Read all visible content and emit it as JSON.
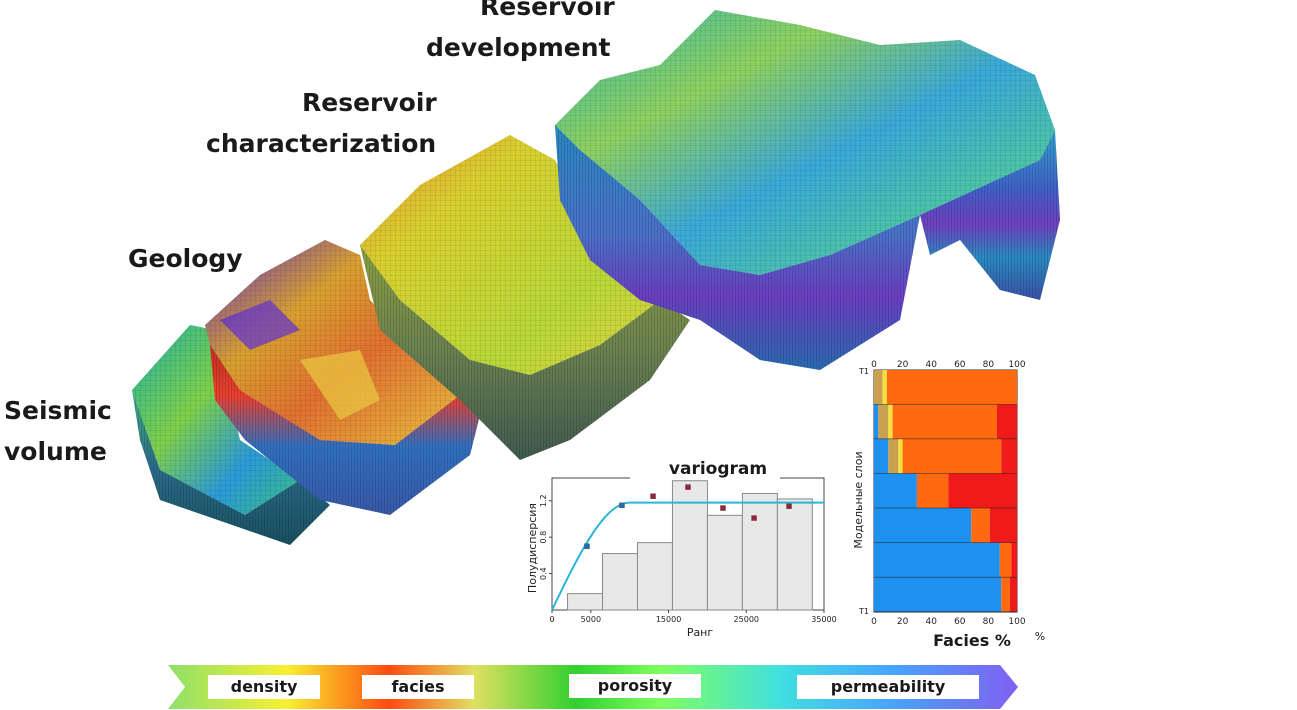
{
  "labels": {
    "seismic_line1": "Seismic",
    "seismic_line2": "volume",
    "geology": "Geology",
    "characterization_line1": "Reservoir",
    "characterization_line2": "characterization",
    "development_line1": "Reservoir",
    "development_line2": "development"
  },
  "gradient_bar": {
    "items": [
      "density",
      "facies",
      "porosity",
      "permeability"
    ]
  },
  "chart_data": [
    {
      "type": "bar",
      "title": "variogram",
      "xlabel": "Ранг",
      "ylabel": "Полудисперсия",
      "xlim": [
        0,
        35000
      ],
      "ylim": [
        0,
        1.45
      ],
      "xticks": [
        "0",
        "5000",
        "15000",
        "25000",
        "35000"
      ],
      "yticks": [
        "0.4",
        "0.8",
        "1.2"
      ],
      "histogram": {
        "bin_edges": [
          2000,
          6500,
          11000,
          15500,
          20000,
          24500,
          29000,
          33500
        ],
        "values": [
          0.18,
          0.62,
          0.74,
          1.42,
          1.04,
          1.28,
          1.22
        ]
      },
      "points": [
        {
          "x": 4500,
          "y": 0.7
        },
        {
          "x": 9000,
          "y": 1.15
        },
        {
          "x": 13000,
          "y": 1.25
        },
        {
          "x": 17500,
          "y": 1.35
        },
        {
          "x": 22000,
          "y": 1.12
        },
        {
          "x": 26000,
          "y": 1.01
        },
        {
          "x": 30500,
          "y": 1.14
        }
      ],
      "model": {
        "sill": 1.18,
        "range": 10000,
        "line_color": "#29b6d6"
      },
      "colors": {
        "bar_fill": "#e8e8e8",
        "bar_stroke": "#8a8a8a",
        "point_blue": "#1f6fb8",
        "point_red": "#9b2235"
      }
    },
    {
      "type": "bar",
      "orientation": "horizontal-stacked",
      "xlabel": "Facies %",
      "x_unit": "%",
      "ylabel": "Модельные слои",
      "top_label": "T1",
      "bottom_label": "T1",
      "xticks": [
        "0",
        "20",
        "40",
        "60",
        "80",
        "100"
      ],
      "colors": {
        "blue": "#1e90f0",
        "brown": "#c8a050",
        "yellow": "#f5e040",
        "orange": "#ff6a10",
        "red": "#f01a1a"
      },
      "layers": [
        [
          {
            "c": "brown",
            "v": 6
          },
          {
            "c": "yellow",
            "v": 3
          },
          {
            "c": "orange",
            "v": 91
          }
        ],
        [
          {
            "c": "blue",
            "v": 3
          },
          {
            "c": "brown",
            "v": 7
          },
          {
            "c": "yellow",
            "v": 3
          },
          {
            "c": "orange",
            "v": 73
          },
          {
            "c": "red",
            "v": 14
          }
        ],
        [
          {
            "c": "blue",
            "v": 10
          },
          {
            "c": "brown",
            "v": 7
          },
          {
            "c": "yellow",
            "v": 3
          },
          {
            "c": "orange",
            "v": 69
          },
          {
            "c": "red",
            "v": 11
          }
        ],
        [
          {
            "c": "blue",
            "v": 30
          },
          {
            "c": "orange",
            "v": 22
          },
          {
            "c": "red",
            "v": 48
          }
        ],
        [
          {
            "c": "blue",
            "v": 68
          },
          {
            "c": "orange",
            "v": 13
          },
          {
            "c": "red",
            "v": 19
          }
        ],
        [
          {
            "c": "blue",
            "v": 88
          },
          {
            "c": "orange",
            "v": 8
          },
          {
            "c": "red",
            "v": 4
          }
        ],
        [
          {
            "c": "blue",
            "v": 89
          },
          {
            "c": "orange",
            "v": 6
          },
          {
            "c": "red",
            "v": 5
          }
        ]
      ]
    }
  ]
}
